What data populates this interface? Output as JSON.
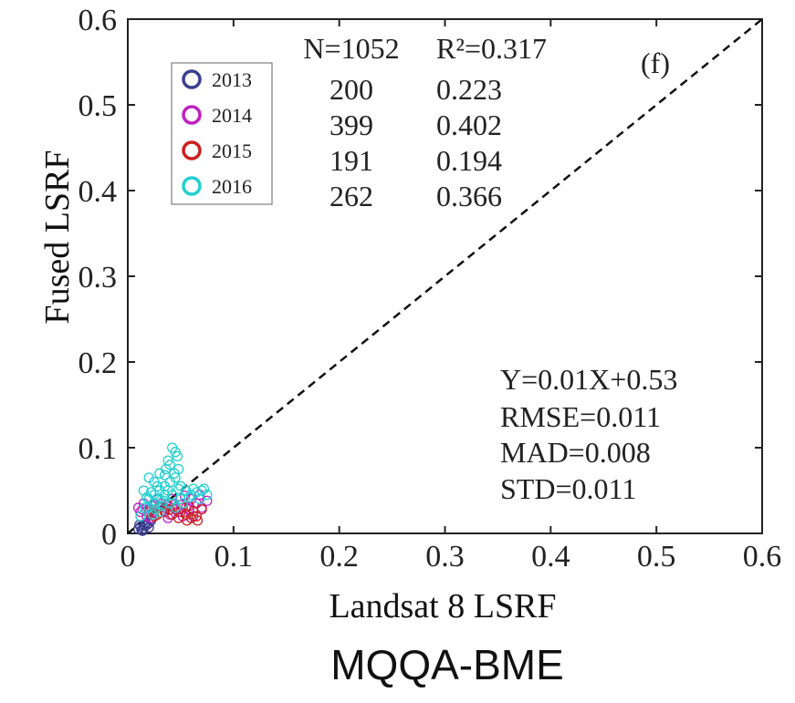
{
  "chart_data": {
    "type": "scatter",
    "title": "MQQA-BME",
    "panel_label": "(f)",
    "xlabel": "Landsat 8 LSRF",
    "ylabel": "Fused LSRF",
    "xlim": [
      0,
      0.6
    ],
    "ylim": [
      0,
      0.6
    ],
    "xticks": [
      "0",
      "0.1",
      "0.2",
      "0.3",
      "0.4",
      "0.5",
      "0.6"
    ],
    "yticks": [
      "0",
      "0.1",
      "0.2",
      "0.3",
      "0.4",
      "0.5",
      "0.6"
    ],
    "tick_values": [
      0,
      0.1,
      0.2,
      0.3,
      0.4,
      0.5,
      0.6
    ],
    "reference_line": "1:1 dashed",
    "legend_position": "upper-left",
    "stats_table": {
      "header": [
        "N=1052",
        "R²=0.317"
      ],
      "rows": [
        [
          "200",
          "0.223"
        ],
        [
          "399",
          "0.402"
        ],
        [
          "191",
          "0.194"
        ],
        [
          "262",
          "0.366"
        ]
      ]
    },
    "fit_stats": [
      "Y=0.01X+0.53",
      "RMSE=0.011",
      "MAD=0.008",
      "STD=0.011"
    ],
    "series": [
      {
        "name": "2013",
        "color": "#3a3f8f",
        "points": [
          [
            0.01,
            0.005
          ],
          [
            0.012,
            0.008
          ],
          [
            0.015,
            0.006
          ],
          [
            0.018,
            0.01
          ],
          [
            0.02,
            0.012
          ],
          [
            0.014,
            0.003
          ],
          [
            0.011,
            0.01
          ],
          [
            0.016,
            0.009
          ],
          [
            0.02,
            0.007
          ],
          [
            0.013,
            0.004
          ],
          [
            0.022,
            0.015
          ],
          [
            0.017,
            0.012
          ]
        ]
      },
      {
        "name": "2014",
        "color": "#c020c0",
        "points": [
          [
            0.01,
            0.03
          ],
          [
            0.012,
            0.025
          ],
          [
            0.015,
            0.035
          ],
          [
            0.02,
            0.028
          ],
          [
            0.025,
            0.033
          ],
          [
            0.03,
            0.025
          ],
          [
            0.035,
            0.03
          ],
          [
            0.04,
            0.022
          ],
          [
            0.045,
            0.028
          ],
          [
            0.05,
            0.033
          ],
          [
            0.055,
            0.03
          ],
          [
            0.06,
            0.04
          ],
          [
            0.065,
            0.035
          ],
          [
            0.07,
            0.03
          ],
          [
            0.075,
            0.038
          ],
          [
            0.018,
            0.02
          ],
          [
            0.028,
            0.04
          ],
          [
            0.038,
            0.018
          ],
          [
            0.048,
            0.025
          ],
          [
            0.058,
            0.028
          ],
          [
            0.068,
            0.045
          ],
          [
            0.022,
            0.018
          ],
          [
            0.032,
            0.035
          ],
          [
            0.042,
            0.04
          ],
          [
            0.052,
            0.02
          ],
          [
            0.062,
            0.02
          ],
          [
            0.014,
            0.028
          ],
          [
            0.024,
            0.024
          ],
          [
            0.044,
            0.034
          ],
          [
            0.054,
            0.044
          ]
        ]
      },
      {
        "name": "2015",
        "color": "#cc2020",
        "points": [
          [
            0.02,
            0.025
          ],
          [
            0.025,
            0.02
          ],
          [
            0.03,
            0.03
          ],
          [
            0.035,
            0.025
          ],
          [
            0.04,
            0.028
          ],
          [
            0.045,
            0.03
          ],
          [
            0.05,
            0.025
          ],
          [
            0.055,
            0.022
          ],
          [
            0.06,
            0.018
          ],
          [
            0.065,
            0.02
          ],
          [
            0.07,
            0.028
          ],
          [
            0.058,
            0.032
          ],
          [
            0.048,
            0.018
          ],
          [
            0.038,
            0.033
          ],
          [
            0.028,
            0.022
          ],
          [
            0.062,
            0.026
          ],
          [
            0.052,
            0.03
          ],
          [
            0.042,
            0.022
          ],
          [
            0.066,
            0.015
          ],
          [
            0.056,
            0.015
          ]
        ]
      },
      {
        "name": "2016",
        "color": "#20d0d0",
        "points": [
          [
            0.02,
            0.04
          ],
          [
            0.025,
            0.045
          ],
          [
            0.03,
            0.05
          ],
          [
            0.035,
            0.055
          ],
          [
            0.04,
            0.06
          ],
          [
            0.045,
            0.065
          ],
          [
            0.04,
            0.08
          ],
          [
            0.045,
            0.095
          ],
          [
            0.042,
            0.1
          ],
          [
            0.047,
            0.09
          ],
          [
            0.038,
            0.085
          ],
          [
            0.02,
            0.065
          ],
          [
            0.025,
            0.06
          ],
          [
            0.03,
            0.07
          ],
          [
            0.035,
            0.068
          ],
          [
            0.015,
            0.05
          ],
          [
            0.02,
            0.03
          ],
          [
            0.025,
            0.035
          ],
          [
            0.03,
            0.04
          ],
          [
            0.035,
            0.045
          ],
          [
            0.04,
            0.035
          ],
          [
            0.045,
            0.03
          ],
          [
            0.05,
            0.04
          ],
          [
            0.055,
            0.05
          ],
          [
            0.06,
            0.045
          ],
          [
            0.065,
            0.048
          ],
          [
            0.07,
            0.05
          ],
          [
            0.075,
            0.045
          ],
          [
            0.072,
            0.052
          ],
          [
            0.068,
            0.04
          ],
          [
            0.058,
            0.042
          ],
          [
            0.048,
            0.052
          ],
          [
            0.028,
            0.055
          ],
          [
            0.018,
            0.042
          ],
          [
            0.022,
            0.048
          ],
          [
            0.032,
            0.032
          ],
          [
            0.038,
            0.05
          ],
          [
            0.042,
            0.045
          ],
          [
            0.052,
            0.035
          ],
          [
            0.062,
            0.052
          ],
          [
            0.026,
            0.028
          ],
          [
            0.034,
            0.038
          ],
          [
            0.044,
            0.07
          ],
          [
            0.048,
            0.075
          ],
          [
            0.036,
            0.075
          ],
          [
            0.016,
            0.03
          ],
          [
            0.012,
            0.02
          ],
          [
            0.024,
            0.022
          ],
          [
            0.03,
            0.025
          ],
          [
            0.05,
            0.055
          ]
        ]
      }
    ]
  }
}
